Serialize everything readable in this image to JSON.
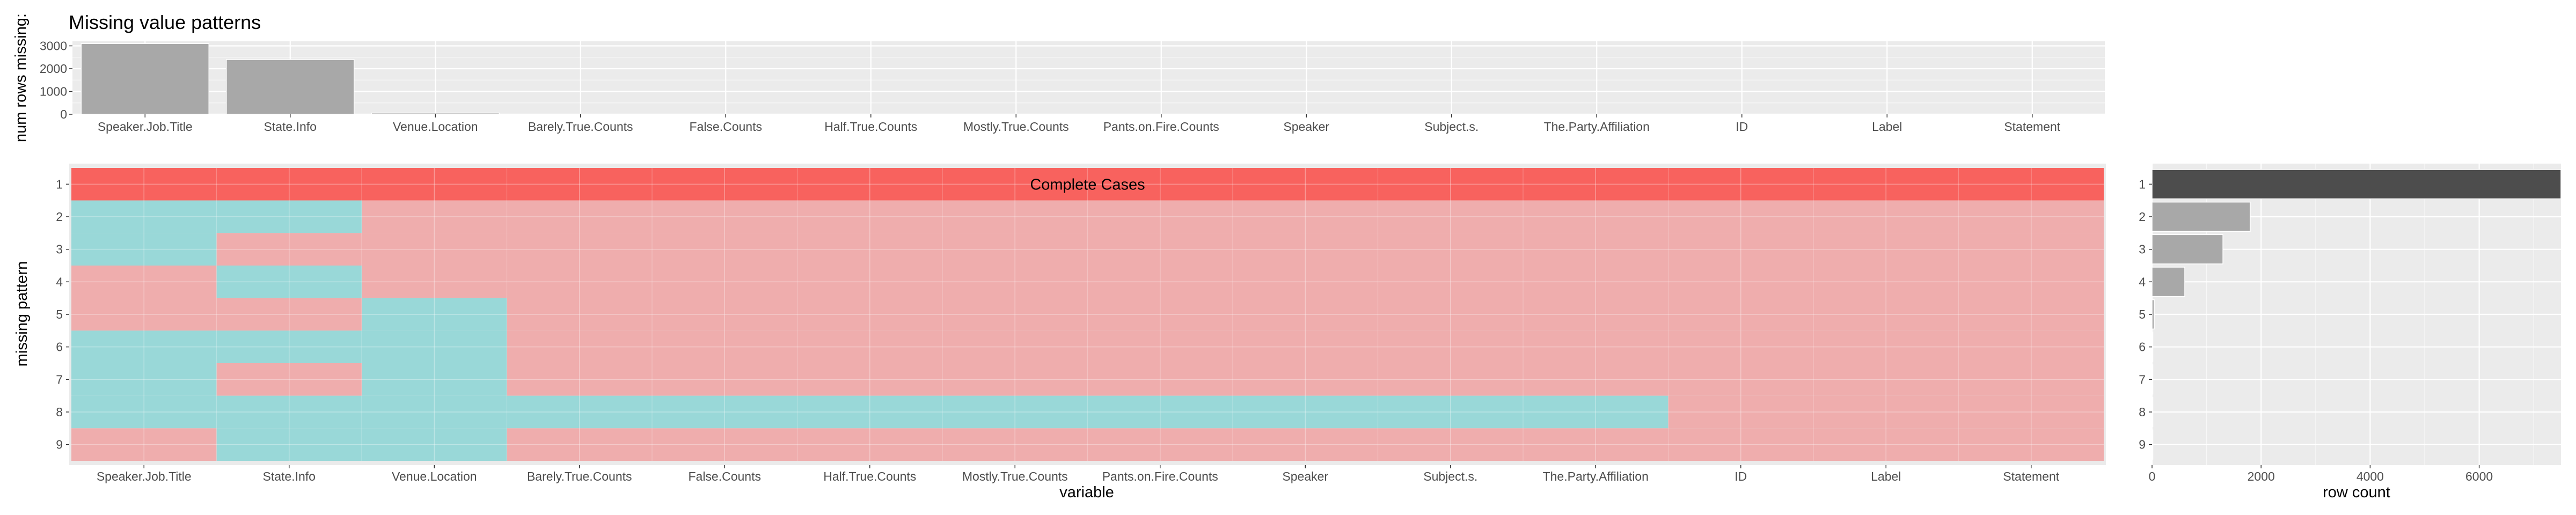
{
  "title": "Missing value patterns",
  "colors": {
    "panel_bg": "#ebebeb",
    "grid": "#ffffff",
    "missing": "#99d8d8",
    "present": "#efadad",
    "complete": "#f8625e",
    "top_bar": "#a8a8a8",
    "first_row_bar": "#4d4d4d",
    "other_row_bar": "#a8a8a8"
  },
  "chart_data": [
    {
      "type": "bar",
      "ylabel": "num rows missing:",
      "xlabel": "",
      "categories": [
        "Speaker.Job.Title",
        "State.Info",
        "Venue.Location",
        "Barely.True.Counts",
        "False.Counts",
        "Half.True.Counts",
        "Mostly.True.Counts",
        "Pants.on.Fire.Counts",
        "Speaker",
        "Subject.s.",
        "The.Party.Affiliation",
        "ID",
        "Label",
        "Statement"
      ],
      "values": [
        3100,
        2400,
        55,
        0,
        0,
        0,
        0,
        0,
        0,
        0,
        0,
        0,
        0,
        0
      ],
      "ylim": [
        0,
        3200
      ],
      "yticks": [
        0,
        1000,
        2000,
        3000
      ],
      "grid": true
    },
    {
      "type": "heatmap",
      "xlabel": "variable",
      "ylabel": "missing pattern",
      "categories": [
        "Speaker.Job.Title",
        "State.Info",
        "Venue.Location",
        "Barely.True.Counts",
        "False.Counts",
        "Half.True.Counts",
        "Mostly.True.Counts",
        "Pants.on.Fire.Counts",
        "Speaker",
        "Subject.s.",
        "The.Party.Affiliation",
        "ID",
        "Label",
        "Statement"
      ],
      "patterns": [
        "1",
        "2",
        "3",
        "4",
        "5",
        "6",
        "7",
        "8",
        "9"
      ],
      "complete_label": "Complete Cases",
      "missing_matrix": [
        [
          0,
          0,
          0,
          0,
          0,
          0,
          0,
          0,
          0,
          0,
          0,
          0,
          0,
          0
        ],
        [
          1,
          1,
          0,
          0,
          0,
          0,
          0,
          0,
          0,
          0,
          0,
          0,
          0,
          0
        ],
        [
          1,
          0,
          0,
          0,
          0,
          0,
          0,
          0,
          0,
          0,
          0,
          0,
          0,
          0
        ],
        [
          0,
          1,
          0,
          0,
          0,
          0,
          0,
          0,
          0,
          0,
          0,
          0,
          0,
          0
        ],
        [
          0,
          0,
          1,
          0,
          0,
          0,
          0,
          0,
          0,
          0,
          0,
          0,
          0,
          0
        ],
        [
          1,
          1,
          1,
          0,
          0,
          0,
          0,
          0,
          0,
          0,
          0,
          0,
          0,
          0
        ],
        [
          1,
          0,
          1,
          0,
          0,
          0,
          0,
          0,
          0,
          0,
          0,
          0,
          0,
          0
        ],
        [
          1,
          1,
          1,
          1,
          1,
          1,
          1,
          1,
          1,
          1,
          1,
          0,
          0,
          0
        ],
        [
          0,
          1,
          1,
          0,
          0,
          0,
          0,
          0,
          0,
          0,
          0,
          0,
          0,
          0
        ]
      ]
    },
    {
      "type": "bar",
      "orientation": "horizontal",
      "xlabel": "row count",
      "ylabel": "",
      "categories": [
        "1",
        "2",
        "3",
        "4",
        "5",
        "6",
        "7",
        "8",
        "9"
      ],
      "values": [
        7500,
        1800,
        1300,
        600,
        40,
        5,
        3,
        2,
        1
      ],
      "xlim": [
        0,
        7500
      ],
      "xticks": [
        0,
        2000,
        4000,
        6000
      ],
      "grid": true
    }
  ]
}
